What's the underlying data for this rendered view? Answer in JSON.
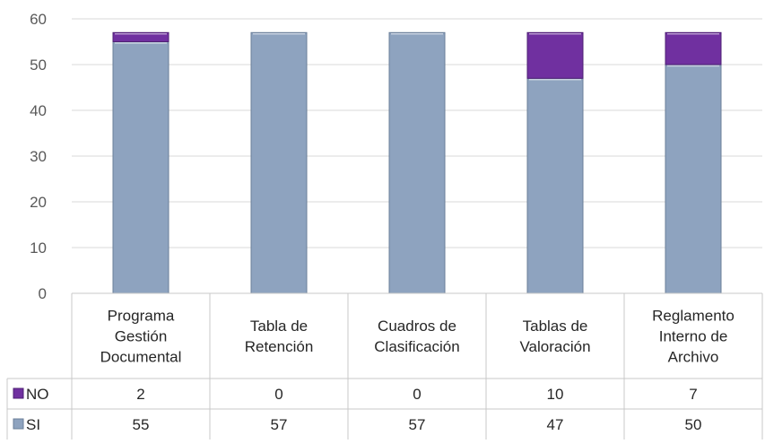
{
  "chart_data": {
    "type": "bar",
    "stacked": true,
    "categories": [
      [
        "Programa",
        "Gestión",
        "Documental"
      ],
      [
        "Tabla de",
        "Retención"
      ],
      [
        "Cuadros de",
        "Clasificación"
      ],
      [
        "Tablas de",
        "Valoración"
      ],
      [
        "Reglamento",
        "Interno de",
        "Archivo"
      ]
    ],
    "series": [
      {
        "name": "SI",
        "values": [
          55,
          57,
          57,
          47,
          50
        ],
        "color": "#8ea3bf"
      },
      {
        "name": "NO",
        "values": [
          2,
          0,
          0,
          10,
          7
        ],
        "color": "#7030a0"
      }
    ],
    "ylim": [
      0,
      60
    ],
    "yticks": [
      0,
      10,
      20,
      30,
      40,
      50,
      60
    ],
    "grid": true,
    "legend": "data-table-left",
    "data_table": true
  }
}
